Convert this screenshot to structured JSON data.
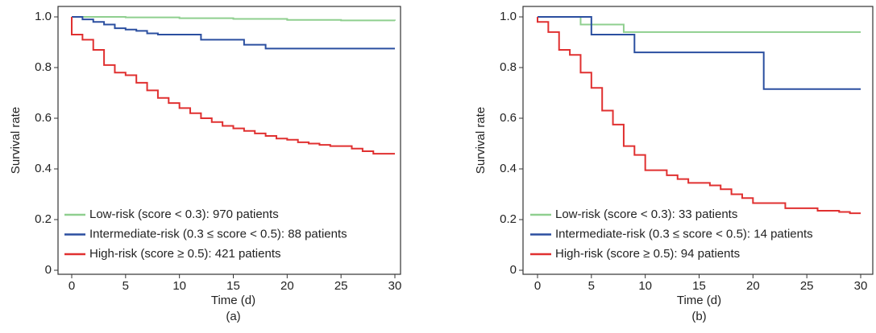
{
  "chart_data": [
    {
      "type": "step",
      "caption": "(a)",
      "xlabel": "Time (d)",
      "ylabel": "Survival rate",
      "xlim": [
        0,
        30
      ],
      "ylim": [
        0,
        1
      ],
      "xticks": [
        0,
        5,
        10,
        15,
        20,
        25,
        30
      ],
      "yticks": [
        0,
        0.2,
        0.4,
        0.6,
        0.8,
        {
          "value": 1,
          "label": "1.0"
        }
      ],
      "legend": "lower left",
      "series": [
        {
          "name": "Low-risk (score < 0.3): 970 patients",
          "color": "#8fcf8f",
          "x": [
            0,
            5,
            10,
            15,
            20,
            25,
            30
          ],
          "values": [
            1,
            0.998,
            0.995,
            0.992,
            0.988,
            0.986,
            0.985
          ]
        },
        {
          "name": "Intermediate-risk (0.3 ≤ score < 0.5): 88 patients",
          "color": "#2b4fa0",
          "x": [
            0,
            1,
            2,
            3,
            4,
            5,
            6,
            7,
            8,
            12,
            16,
            18,
            30
          ],
          "values": [
            1,
            0.99,
            0.98,
            0.97,
            0.955,
            0.95,
            0.945,
            0.935,
            0.93,
            0.91,
            0.89,
            0.875,
            0.875
          ]
        },
        {
          "name": "High-risk (score ≥ 0.5): 421 patients",
          "color": "#e03030",
          "x": [
            0,
            0,
            1,
            2,
            3,
            4,
            5,
            6,
            7,
            8,
            9,
            10,
            11,
            12,
            13,
            14,
            15,
            16,
            17,
            18,
            19,
            20,
            21,
            22,
            23,
            24,
            26,
            27,
            28,
            30
          ],
          "values": [
            1,
            0.93,
            0.91,
            0.87,
            0.81,
            0.78,
            0.77,
            0.74,
            0.71,
            0.68,
            0.66,
            0.64,
            0.62,
            0.6,
            0.585,
            0.57,
            0.56,
            0.55,
            0.54,
            0.53,
            0.52,
            0.515,
            0.505,
            0.5,
            0.495,
            0.49,
            0.48,
            0.47,
            0.46,
            0.46
          ]
        }
      ]
    },
    {
      "type": "step",
      "caption": "(b)",
      "xlabel": "Time (d)",
      "ylabel": "Survival rate",
      "xlim": [
        0,
        30
      ],
      "ylim": [
        0,
        1
      ],
      "xticks": [
        0,
        5,
        10,
        15,
        20,
        25,
        30
      ],
      "yticks": [
        0,
        0.2,
        0.4,
        0.6,
        0.8,
        {
          "value": 1,
          "label": "1.0"
        }
      ],
      "legend": "lower left",
      "series": [
        {
          "name": "Low-risk (score < 0.3): 33 patients",
          "color": "#8fcf8f",
          "x": [
            0,
            4,
            8,
            30
          ],
          "values": [
            1,
            0.97,
            0.94,
            0.94
          ]
        },
        {
          "name": "Intermediate-risk (0.3 ≤ score < 0.5): 14 patients",
          "color": "#2b4fa0",
          "x": [
            0,
            5,
            9,
            21,
            30
          ],
          "values": [
            1,
            0.93,
            0.86,
            0.715,
            0.715
          ]
        },
        {
          "name": "High-risk (score ≥ 0.5): 94 patients",
          "color": "#e03030",
          "x": [
            0,
            0,
            1,
            2,
            3,
            4,
            5,
            6,
            7,
            8,
            9,
            10,
            12,
            13,
            14,
            16,
            17,
            18,
            19,
            20,
            23,
            26,
            28,
            29,
            30
          ],
          "values": [
            1,
            0.98,
            0.94,
            0.87,
            0.85,
            0.78,
            0.72,
            0.63,
            0.575,
            0.49,
            0.455,
            0.395,
            0.375,
            0.36,
            0.345,
            0.335,
            0.32,
            0.3,
            0.285,
            0.265,
            0.245,
            0.235,
            0.23,
            0.225,
            0.225
          ]
        }
      ]
    }
  ]
}
